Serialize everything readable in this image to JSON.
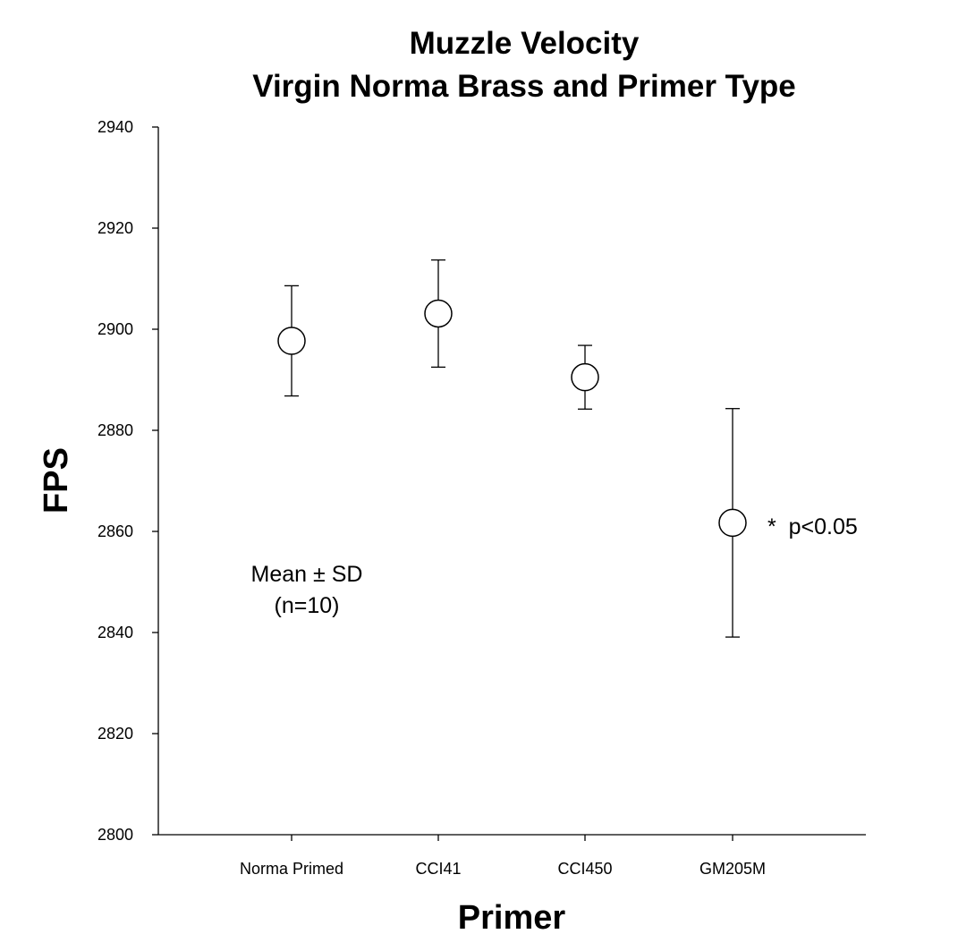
{
  "chart_data": {
    "type": "scatter",
    "title": [
      "Muzzle Velocity",
      "Virgin Norma Brass and Primer Type"
    ],
    "xlabel": "Primer",
    "ylabel": "FPS",
    "categories": [
      "Norma Primed",
      "CCI41",
      "CCI450",
      "GM205M"
    ],
    "series": [
      {
        "values": [
          2897.7,
          2903.1,
          2890.5,
          2861.7
        ],
        "sd": [
          10.9,
          10.6,
          6.3,
          22.6
        ]
      }
    ],
    "ylim": [
      2800,
      2940
    ],
    "yticks": [
      2800,
      2820,
      2840,
      2860,
      2880,
      2900,
      2920,
      2940
    ],
    "grid": false,
    "legend": "none",
    "marker": "open-circle",
    "annotations": [
      {
        "text_lines": [
          "Mean ± SD",
          "(n=10)"
        ]
      },
      {
        "text": "*  p<0.05",
        "category": "GM205M"
      }
    ],
    "colors": {
      "marker_fill": "#ffffff",
      "stroke": "#000000"
    }
  }
}
